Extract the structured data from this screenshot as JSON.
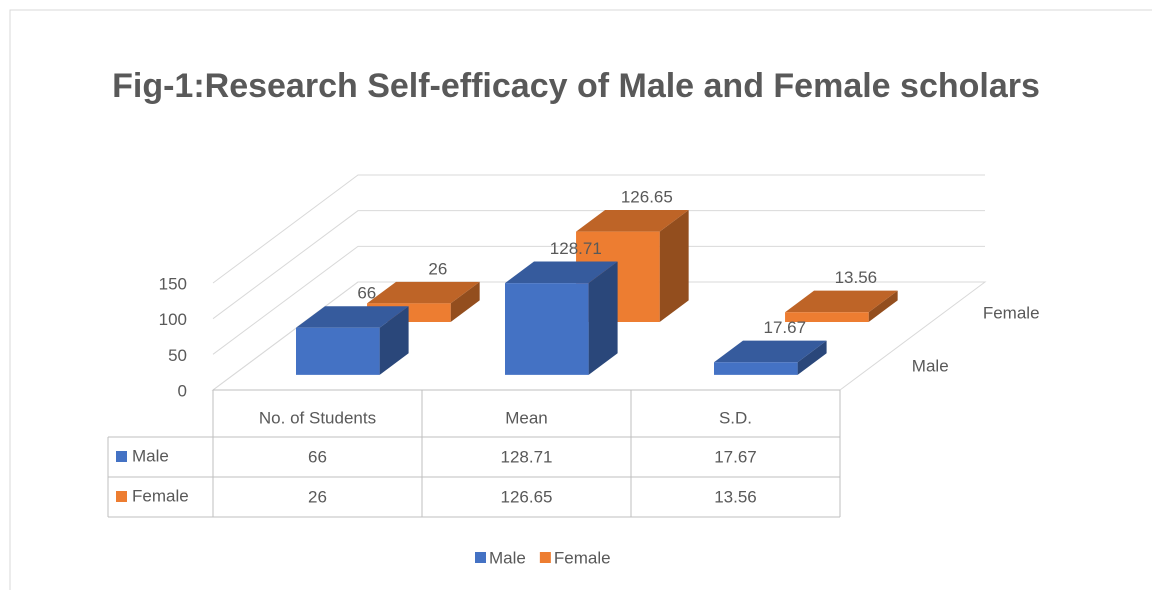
{
  "chart_data": {
    "type": "bar3d",
    "title": "Fig-1:Research Self-efficacy of Male and Female scholars",
    "categories": [
      "No. of Students",
      "Mean",
      "S.D."
    ],
    "series": [
      {
        "name": "Male",
        "color": "#4472c4",
        "values": [
          66,
          128.71,
          17.67
        ]
      },
      {
        "name": "Female",
        "color": "#ed7d31",
        "values": [
          26,
          126.65,
          13.56
        ]
      }
    ],
    "ylim": [
      0,
      150
    ],
    "yticks": [
      0,
      50,
      100,
      150
    ],
    "grid": true,
    "data_table": true,
    "legend": "bottom"
  }
}
